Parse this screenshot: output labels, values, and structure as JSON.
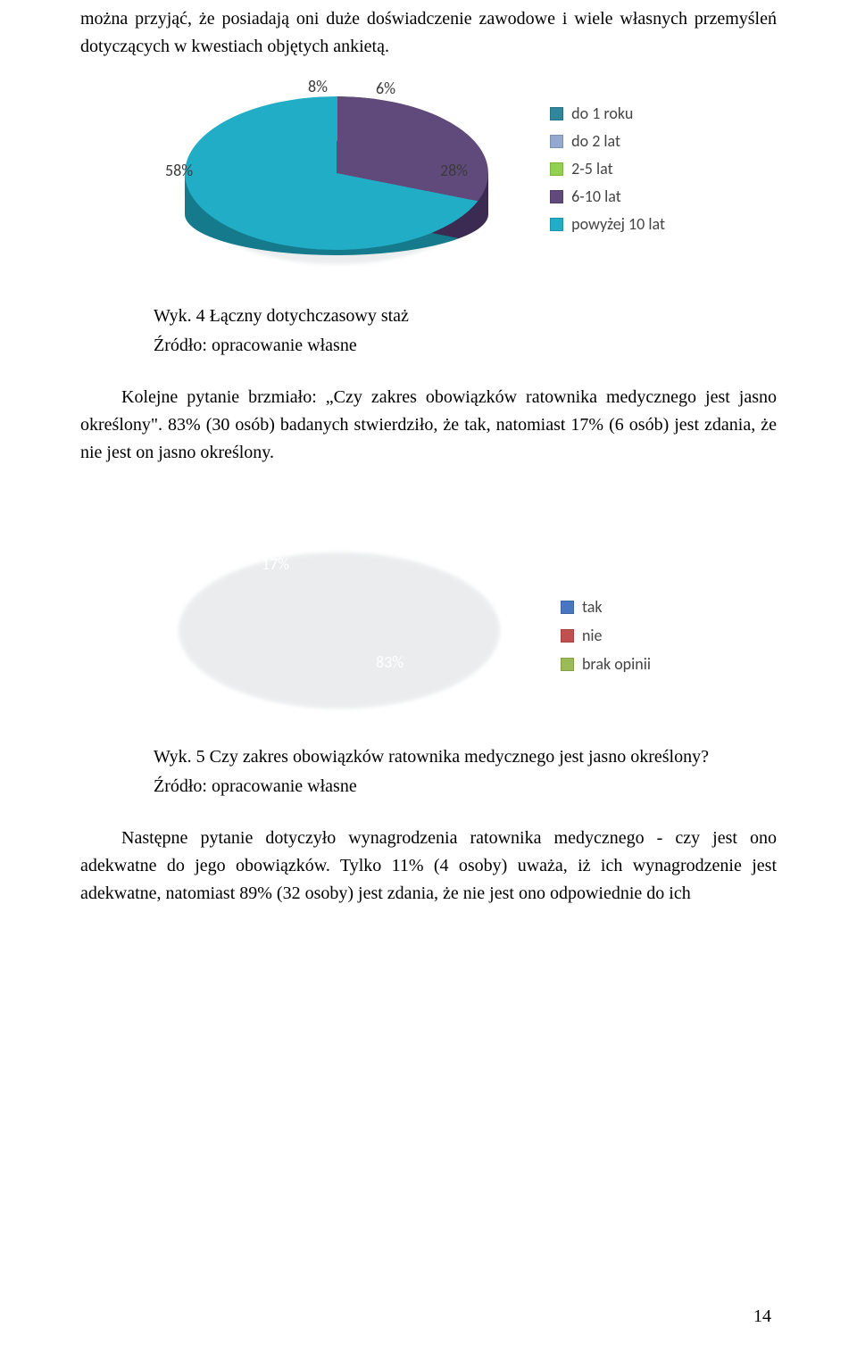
{
  "page_number": "14",
  "para_top": "można przyjąć, że posiadają oni duże doświadczenie zawodowe i wiele własnych przemyśleń dotyczących w kwestiach objętych ankietą.",
  "chart1": {
    "type": "pie",
    "caption_line1": "Wyk. 4 Łączny dotychczasowy staż",
    "caption_line2": "Źródło: opracowanie własne",
    "legend": [
      {
        "label": "do 1 roku",
        "color": "#31859c"
      },
      {
        "label": "do 2 lat",
        "color": "#93a9cf"
      },
      {
        "label": "2-5 lat",
        "color": "#92d050"
      },
      {
        "label": "6-10 lat",
        "color": "#604a7b"
      },
      {
        "label": "powyżej 10 lat",
        "color": "#21adc6"
      }
    ],
    "slices": [
      {
        "label": "8%",
        "value": 8,
        "color": "#1f6e8c"
      },
      {
        "label": "6%",
        "value": 6,
        "color": "#92d050"
      },
      {
        "label": "28%",
        "value": 28,
        "color": "#604a7b"
      },
      {
        "label": "58%",
        "value": 58,
        "color": "#21adc6"
      }
    ],
    "side_dark1": "#0f5f7a",
    "side_dark2": "#3b2b53",
    "side_dark3": "#147a8c",
    "label_fontsize": 18,
    "label_color": "#3a3a3a",
    "background_color": "#ffffff"
  },
  "para_mid": "Kolejne pytanie brzmiało: „Czy zakres obowiązków ratownika medycznego jest jasno określony\". 83% (30 osób) badanych stwierdziło, że tak, natomiast 17% (6 osób) jest zdania, że nie jest on jasno określony.",
  "chart2": {
    "type": "pie",
    "caption_line1": "Wyk. 5 Czy zakres obowiązków ratownika medycznego jest jasno określony?",
    "caption_line2": "Źródło: opracowanie własne",
    "legend": [
      {
        "label": "tak",
        "color": "#4677c0"
      },
      {
        "label": "nie",
        "color": "#c0504d"
      },
      {
        "label": "brak opinii",
        "color": "#9bbb59"
      }
    ],
    "slices": [
      {
        "label": "17%",
        "value": 17,
        "color": "#c0504d"
      },
      {
        "label": "83%",
        "value": 83,
        "color": "#4677c0"
      }
    ],
    "side_dark_blue": "#2f528f",
    "side_dark_red": "#8a3330",
    "label_fontsize": 18,
    "label_color": "#ffffff",
    "background_color": "#ffffff"
  },
  "para_bottom": "Następne pytanie dotyczyło wynagrodzenia ratownika medycznego - czy jest ono adekwatne do jego obowiązków. Tylko 11% (4 osoby) uważa, iż ich wynagrodzenie jest adekwatne, natomiast 89% (32 osoby) jest zdania, że nie jest ono odpowiednie do ich"
}
